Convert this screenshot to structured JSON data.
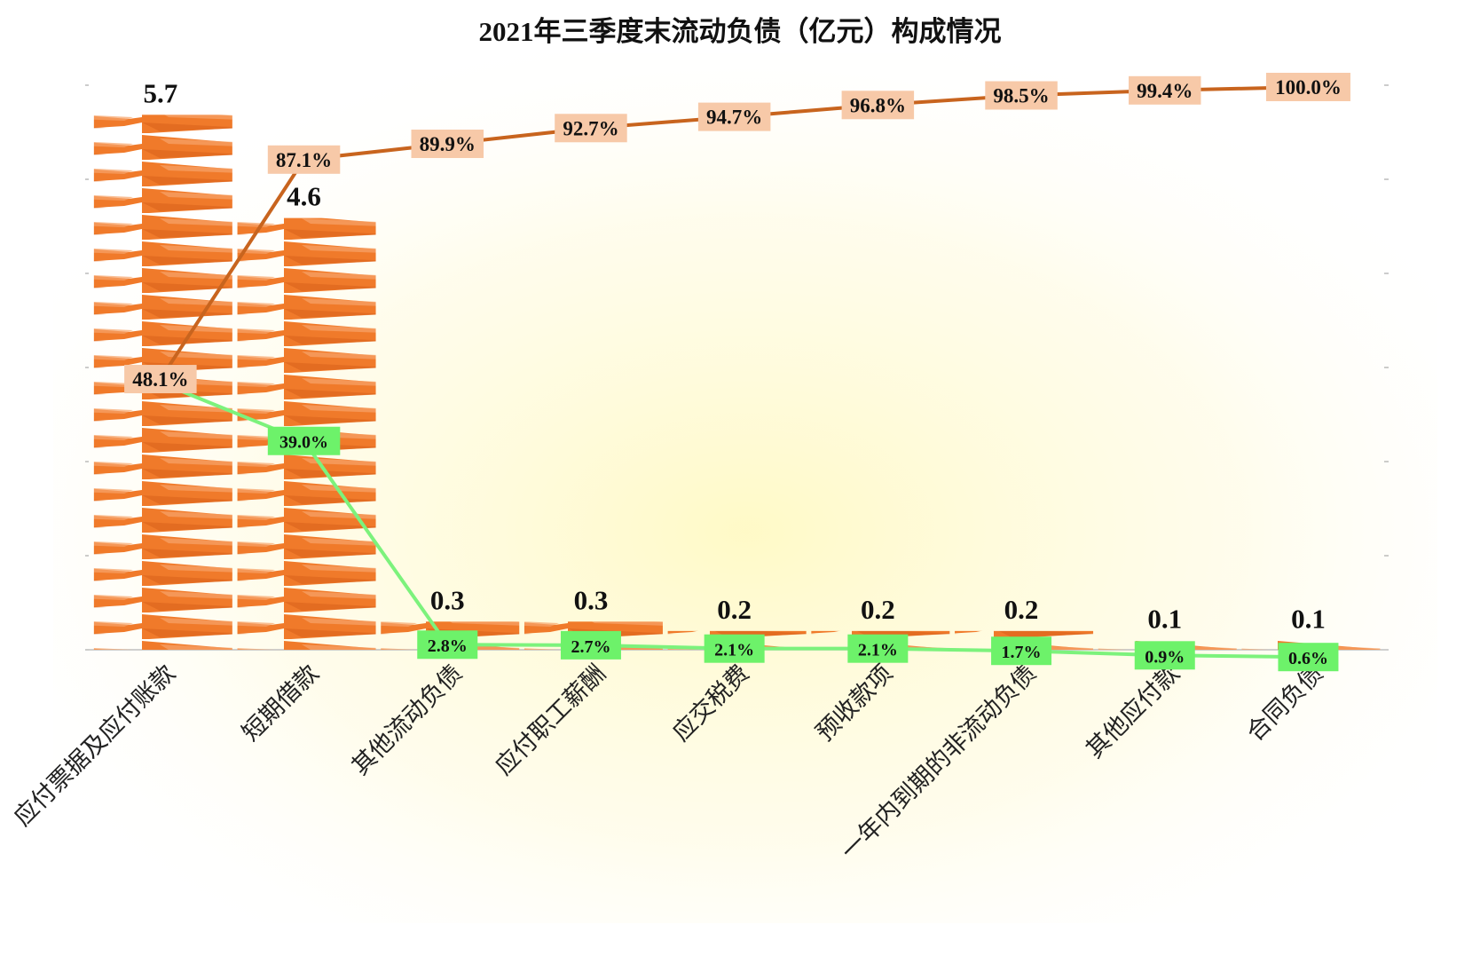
{
  "chart_data": {
    "type": "bar",
    "title": "2021年三季度末流动负债（亿元）构成情况",
    "categories": [
      "应付票据及应付账款",
      "短期借款",
      "其他流动负债",
      "应付职工薪酬",
      "应交税费",
      "预收款项",
      "一年内到期的非流动负债",
      "其他应付款",
      "合同负债"
    ],
    "values": [
      5.7,
      4.6,
      0.3,
      0.3,
      0.2,
      0.2,
      0.2,
      0.1,
      0.1
    ],
    "value_labels": [
      "5.7",
      "4.6",
      "0.3",
      "0.3",
      "0.2",
      "0.2",
      "0.2",
      "0.1",
      "0.1"
    ],
    "share_labels": [
      "48.1%",
      "39.0%",
      "2.8%",
      "2.7%",
      "2.1%",
      "2.1%",
      "1.7%",
      "0.9%",
      "0.6%"
    ],
    "share_values": [
      48.1,
      39.0,
      2.8,
      2.7,
      2.1,
      2.1,
      1.7,
      0.9,
      0.6
    ],
    "cumulative_labels": [
      "48.1%",
      "87.1%",
      "89.9%",
      "92.7%",
      "94.7%",
      "96.8%",
      "98.5%",
      "99.4%",
      "100.0%"
    ],
    "cumulative_values": [
      48.1,
      87.1,
      89.9,
      92.7,
      94.7,
      96.8,
      98.5,
      99.4,
      100.0
    ],
    "ylim": [
      0,
      6
    ],
    "y2lim": [
      0,
      100
    ],
    "grid": false,
    "colors": {
      "bar": "#f07a2a",
      "bar_light": "#f7a46a",
      "cumulative_line": "#c8641e",
      "cumulative_label_bg": "#f7c9a8",
      "share_line": "#7cf27c",
      "share_label_bg": "#6df26a",
      "axis": "#bfbfbf",
      "glow": "#fff9c4"
    }
  }
}
